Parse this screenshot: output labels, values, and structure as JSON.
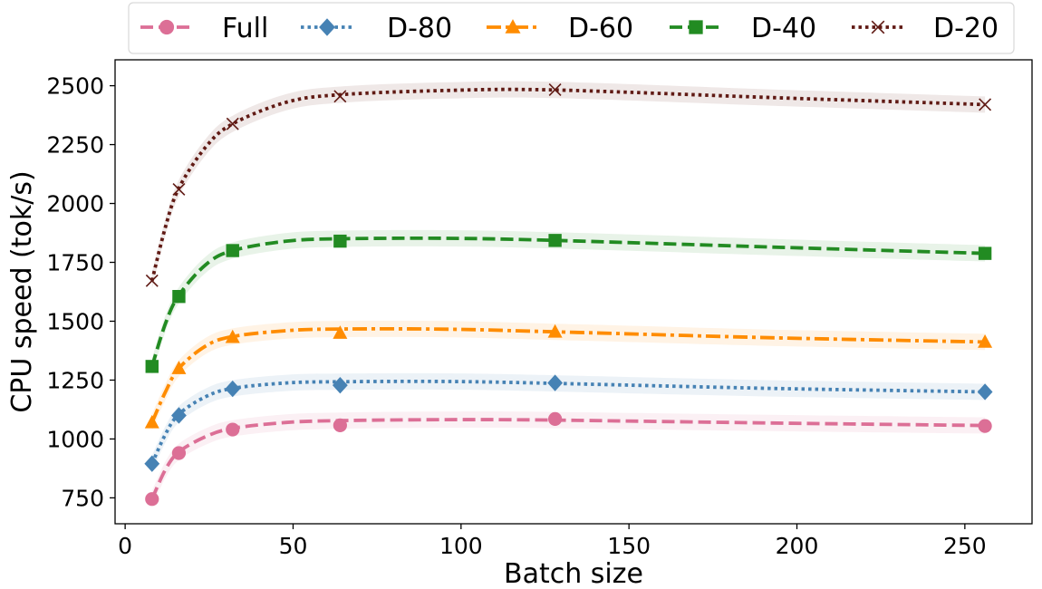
{
  "chart_data": {
    "type": "line",
    "title": "",
    "xlabel": "Batch size",
    "ylabel": "CPU speed (tok/s)",
    "xlim": [
      -3,
      270
    ],
    "ylim": [
      640,
      2610
    ],
    "xticks": [
      0,
      50,
      100,
      150,
      200,
      250
    ],
    "yticks": [
      750,
      1000,
      1250,
      1500,
      1750,
      2000,
      2250,
      2500
    ],
    "grid": false,
    "legend_position": "top, above plot",
    "x": [
      8,
      16,
      32,
      64,
      128,
      256
    ],
    "series": [
      {
        "name": "Full",
        "color": "#dc6f96",
        "marker": "circle",
        "line_style": "dashed",
        "values": [
          745,
          940,
          1040,
          1058,
          1085,
          1055
        ],
        "smooth": [
          [
            8,
            745
          ],
          [
            12,
            870
          ],
          [
            16,
            945
          ],
          [
            24,
            1010
          ],
          [
            32,
            1045
          ],
          [
            48,
            1070
          ],
          [
            64,
            1078
          ],
          [
            96,
            1082
          ],
          [
            128,
            1080
          ],
          [
            192,
            1068
          ],
          [
            256,
            1057
          ]
        ]
      },
      {
        "name": "D-80",
        "color": "#4682b4",
        "marker": "diamond",
        "line_style": "dotted",
        "values": [
          895,
          1100,
          1213,
          1228,
          1238,
          1200
        ],
        "smooth": [
          [
            8,
            895
          ],
          [
            12,
            1020
          ],
          [
            16,
            1105
          ],
          [
            24,
            1180
          ],
          [
            32,
            1215
          ],
          [
            48,
            1238
          ],
          [
            64,
            1243
          ],
          [
            96,
            1244
          ],
          [
            128,
            1236
          ],
          [
            192,
            1215
          ],
          [
            256,
            1200
          ]
        ]
      },
      {
        "name": "D-60",
        "color": "#ff8c00",
        "marker": "triangle",
        "line_style": "dashdot",
        "values": [
          1070,
          1300,
          1432,
          1450,
          1455,
          1412
        ],
        "smooth": [
          [
            8,
            1070
          ],
          [
            12,
            1200
          ],
          [
            16,
            1300
          ],
          [
            24,
            1395
          ],
          [
            32,
            1435
          ],
          [
            48,
            1460
          ],
          [
            64,
            1467
          ],
          [
            96,
            1466
          ],
          [
            128,
            1455
          ],
          [
            192,
            1430
          ],
          [
            256,
            1412
          ]
        ]
      },
      {
        "name": "D-40",
        "color": "#228b22",
        "marker": "square",
        "line_style": "dashed",
        "values": [
          1308,
          1605,
          1800,
          1840,
          1843,
          1788
        ],
        "smooth": [
          [
            8,
            1308
          ],
          [
            12,
            1490
          ],
          [
            16,
            1610
          ],
          [
            24,
            1740
          ],
          [
            32,
            1800
          ],
          [
            48,
            1840
          ],
          [
            64,
            1850
          ],
          [
            96,
            1852
          ],
          [
            128,
            1843
          ],
          [
            192,
            1815
          ],
          [
            256,
            1788
          ]
        ]
      },
      {
        "name": "D-20",
        "color": "#601a14",
        "marker": "x",
        "line_style": "dotted",
        "values": [
          1672,
          2060,
          2338,
          2455,
          2483,
          2420
        ],
        "smooth": [
          [
            8,
            1672
          ],
          [
            12,
            1900
          ],
          [
            16,
            2065
          ],
          [
            24,
            2240
          ],
          [
            32,
            2338
          ],
          [
            48,
            2430
          ],
          [
            64,
            2462
          ],
          [
            96,
            2480
          ],
          [
            128,
            2482
          ],
          [
            192,
            2450
          ],
          [
            256,
            2420
          ]
        ]
      }
    ]
  }
}
